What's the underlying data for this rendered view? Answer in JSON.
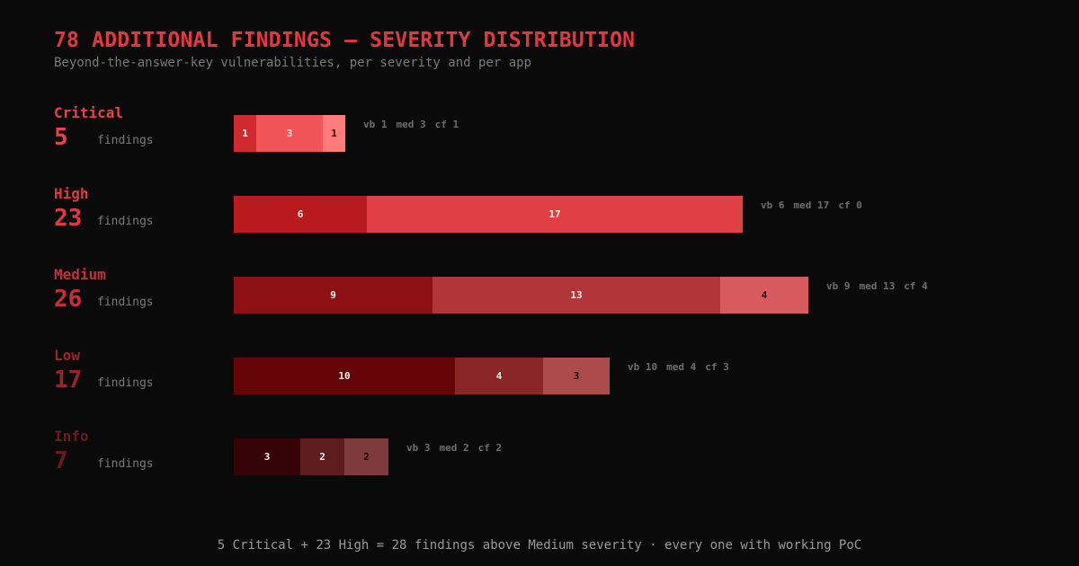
{
  "header": {
    "title": "78 ADDITIONAL FINDINGS — SEVERITY DISTRIBUTION",
    "subtitle": "Beyond-the-answer-key vulnerabilities, per severity and per app"
  },
  "footer": {
    "text": "5 Critical + 23 High = 28 findings above Medium severity · every one with working PoC"
  },
  "chart_data": {
    "type": "bar",
    "orientation": "horizontal",
    "stacked": true,
    "title": "78 ADDITIONAL FINDINGS — SEVERITY DISTRIBUTION",
    "subtitle": "Beyond-the-answer-key vulnerabilities, per severity and per app",
    "categories": [
      "Critical",
      "High",
      "Medium",
      "Low",
      "Info"
    ],
    "totals": [
      5,
      23,
      26,
      17,
      7
    ],
    "unit_label": "findings",
    "series_labels": [
      "vb",
      "med",
      "cf"
    ],
    "series": [
      {
        "values": [
          1,
          6,
          9,
          10,
          3
        ]
      },
      {
        "values": [
          3,
          17,
          13,
          4,
          2
        ]
      },
      {
        "values": [
          1,
          0,
          4,
          3,
          2
        ]
      }
    ],
    "colors": {
      "Critical": {
        "label": "#e8434a",
        "segments": [
          "#cf2a30",
          "#f05458",
          "#ff7a7a"
        ]
      },
      "High": {
        "label": "#e2383e",
        "segments": [
          "#b81a1e",
          "#e04044",
          "#e86a6e"
        ]
      },
      "Medium": {
        "label": "#c43035",
        "segments": [
          "#8c1014",
          "#b0363a",
          "#d65a5e"
        ]
      },
      "Low": {
        "label": "#9a2428",
        "segments": [
          "#650507",
          "#8a2628",
          "#ad4a4c"
        ]
      },
      "Info": {
        "label": "#6e1a1d",
        "segments": [
          "#360407",
          "#5e1c1e",
          "#7e3a3c"
        ]
      }
    },
    "grid": false,
    "legend": "none"
  }
}
